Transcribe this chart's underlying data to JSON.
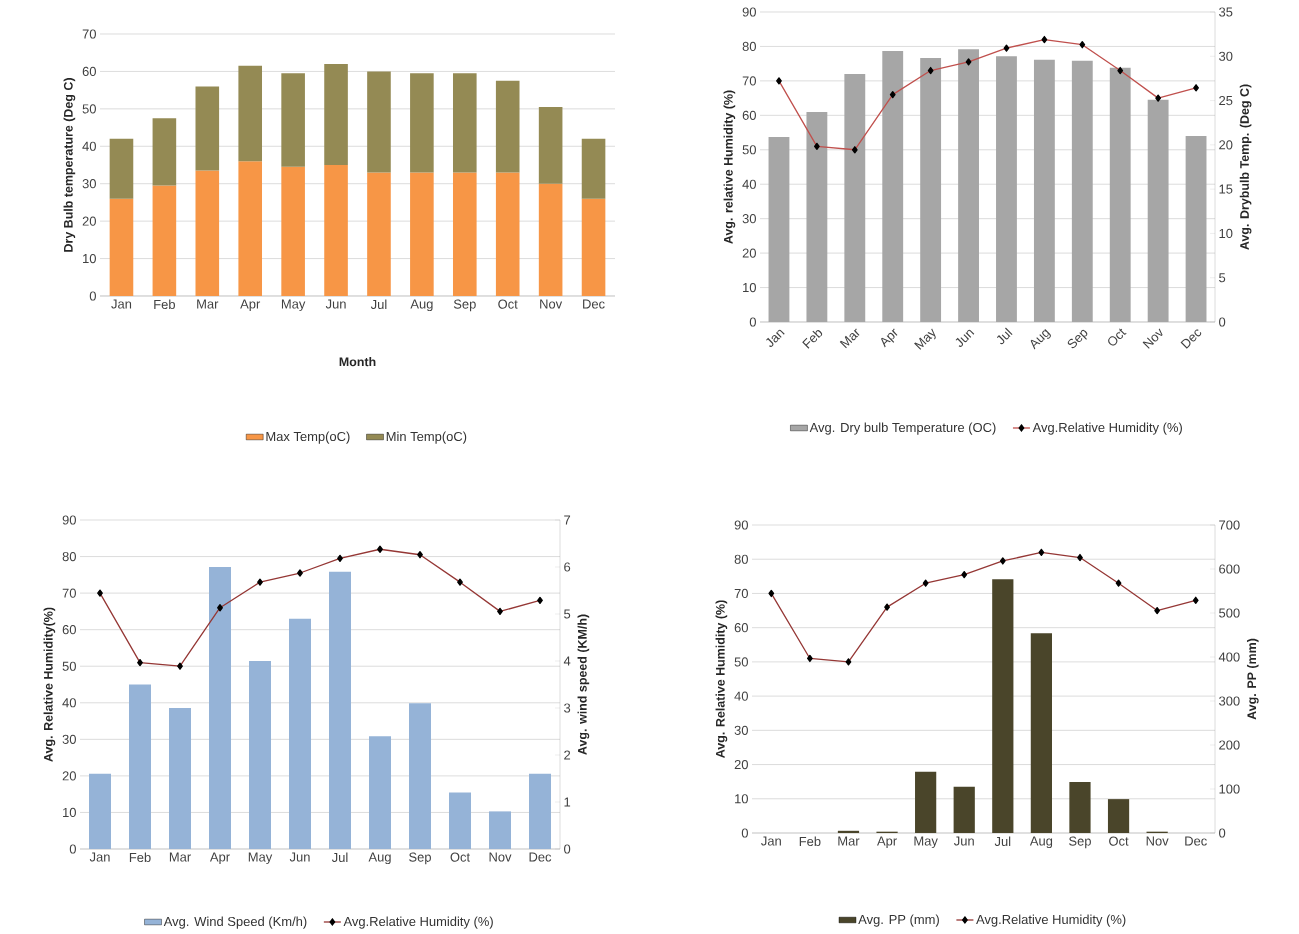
{
  "chart_data": [
    {
      "type": "bar",
      "stacked": true,
      "categories": [
        "Jan",
        "Feb",
        "Mar",
        "Apr",
        "May",
        "Jun",
        "Jul",
        "Aug",
        "Sep",
        "Oct",
        "Nov",
        "Dec"
      ],
      "xlabel": "Month",
      "ylabel": "Dry Bulb temperature (Deg C)",
      "ylim": [
        0,
        70
      ],
      "yticks": [
        0,
        10,
        20,
        30,
        40,
        50,
        60,
        70
      ],
      "grid": "y",
      "legend": "bottom",
      "series": [
        {
          "name": "Max Temp(oC)",
          "color": "#f79646",
          "values": [
            26,
            29.5,
            33.5,
            36,
            34.5,
            35,
            33,
            33,
            33,
            33,
            30,
            26
          ]
        },
        {
          "name": "Min Temp(oC)",
          "color": "#948a54",
          "values": [
            16,
            18,
            22.5,
            25.5,
            25,
            27,
            27,
            26.5,
            26.5,
            24.5,
            20.5,
            16
          ]
        }
      ]
    },
    {
      "type": "bar",
      "categories": [
        "Jan",
        "Feb",
        "Mar",
        "Apr",
        "May",
        "Jun",
        "Jul",
        "Aug",
        "Sep",
        "Oct",
        "Nov",
        "Dec"
      ],
      "ylabel": "Avg. relative Humidity (%)",
      "y2label": "Avg. Drybulb Temp. (Deg C)",
      "ylim": [
        0,
        90
      ],
      "yticks": [
        0,
        10,
        20,
        30,
        40,
        50,
        60,
        70,
        80,
        90
      ],
      "y2lim": [
        0,
        35
      ],
      "y2ticks": [
        0,
        5,
        10,
        15,
        20,
        25,
        30,
        35
      ],
      "grid": "y",
      "legend": "bottom",
      "marker": "diamond",
      "series": [
        {
          "name": "Avg. Dry bulb Temperature (OC)",
          "axis": "y2",
          "color": "#a6a6a6",
          "values": [
            20.9,
            23.7,
            28,
            30.6,
            29.8,
            30.8,
            30,
            29.6,
            29.5,
            28.7,
            25.1,
            21
          ]
        },
        {
          "name": "Avg.Relative Humidity (%)",
          "type": "line",
          "color": "#c0504d",
          "values": [
            70,
            51,
            50,
            66,
            73,
            75.5,
            79.5,
            82,
            80.5,
            73,
            65,
            68
          ]
        }
      ]
    },
    {
      "type": "bar",
      "categories": [
        "Jan",
        "Feb",
        "Mar",
        "Apr",
        "May",
        "Jun",
        "Jul",
        "Aug",
        "Sep",
        "Oct",
        "Nov",
        "Dec"
      ],
      "ylabel": "Avg. Relative Humidity(%)",
      "y2label": "Avg. wind speed (KM/h)",
      "ylim": [
        0,
        90
      ],
      "yticks": [
        0,
        10,
        20,
        30,
        40,
        50,
        60,
        70,
        80,
        90
      ],
      "y2lim": [
        0,
        7
      ],
      "y2ticks": [
        0,
        1,
        2,
        3,
        4,
        5,
        6,
        7
      ],
      "grid": "y",
      "legend": "bottom",
      "marker": "diamond",
      "series": [
        {
          "name": "Avg. Wind Speed (Km/h)",
          "axis": "y2",
          "color": "#95b3d7",
          "values": [
            1.6,
            3.5,
            3,
            6,
            4,
            4.9,
            5.9,
            2.4,
            3.1,
            1.2,
            0.8,
            1.6
          ]
        },
        {
          "name": "Avg.Relative Humidity (%)",
          "type": "line",
          "color": "#953735",
          "values": [
            70,
            51,
            50,
            66,
            73,
            75.5,
            79.5,
            82,
            80.5,
            73,
            65,
            68
          ]
        }
      ]
    },
    {
      "type": "bar",
      "categories": [
        "Jan",
        "Feb",
        "Mar",
        "Apr",
        "May",
        "Jun",
        "Jul",
        "Aug",
        "Sep",
        "Oct",
        "Nov",
        "Dec"
      ],
      "ylabel": "Avg. Relative Humidity (%)",
      "y2label": "Avg. PP (mm)",
      "ylim": [
        0,
        90
      ],
      "yticks": [
        0,
        10,
        20,
        30,
        40,
        50,
        60,
        70,
        80,
        90
      ],
      "y2lim": [
        0,
        700
      ],
      "y2ticks": [
        0,
        100,
        200,
        300,
        400,
        500,
        600,
        700
      ],
      "grid": "y",
      "legend": "bottom",
      "marker": "diamond",
      "series": [
        {
          "name": "Avg. PP (mm)",
          "axis": "y2",
          "color": "#4a452a",
          "values": [
            0,
            0,
            5,
            3,
            139,
            105,
            577,
            454,
            116,
            77,
            3,
            0
          ]
        },
        {
          "name": "Avg.Relative Humidity (%)",
          "type": "line",
          "color": "#953735",
          "values": [
            70,
            51,
            50,
            66,
            73,
            75.5,
            79.5,
            82,
            80.5,
            73,
            65,
            68
          ]
        }
      ]
    }
  ]
}
